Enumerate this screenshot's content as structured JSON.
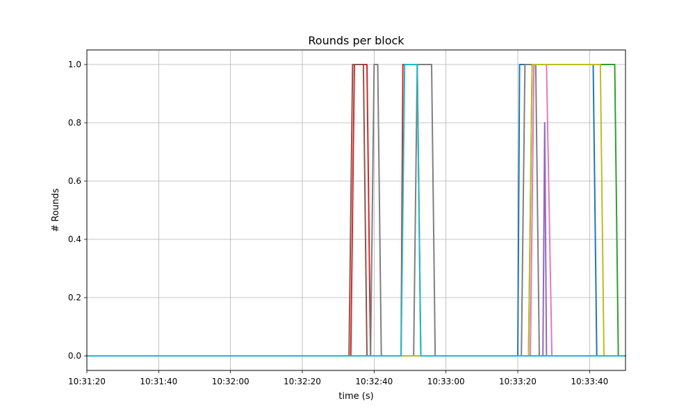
{
  "chart_data": {
    "type": "line",
    "title": "Rounds per block",
    "xlabel": "time (s)",
    "ylabel": "# Rounds",
    "xlim": [
      "10:31:20",
      "10:33:50"
    ],
    "ylim": [
      -0.05,
      1.05
    ],
    "x_ticks": [
      "10:31:20",
      "10:31:40",
      "10:32:00",
      "10:32:20",
      "10:32:40",
      "10:33:00",
      "10:33:20",
      "10:33:40"
    ],
    "y_ticks": [
      "0.0",
      "0.2",
      "0.4",
      "0.6",
      "0.8",
      "1.0"
    ],
    "grid": true,
    "legend": "none",
    "series": [
      {
        "color": "#1f77b4",
        "x": [
          "10:31:20",
          "10:33:20",
          "10:33:20.5",
          "10:33:22",
          "10:33:41",
          "10:33:42",
          "10:33:50"
        ],
        "y": [
          0,
          0,
          1,
          1,
          1,
          0,
          0
        ]
      },
      {
        "color": "#ff7f0e",
        "x": [
          "10:31:20",
          "10:32:48",
          "10:32:53",
          "10:33:50"
        ],
        "y": [
          0,
          0,
          0,
          0
        ]
      },
      {
        "color": "#2ca02c",
        "x": [
          "10:31:20",
          "10:33:23",
          "10:33:24",
          "10:33:47",
          "10:33:48",
          "10:33:50"
        ],
        "y": [
          0,
          0,
          1,
          1,
          0,
          0
        ]
      },
      {
        "color": "#d62728",
        "x": [
          "10:31:20",
          "10:32:33.5",
          "10:32:34.5",
          "10:32:38",
          "10:32:39",
          "10:32:47.5",
          "10:32:48",
          "10:32:50",
          "10:32:52",
          "10:32:53",
          "10:33:50"
        ],
        "y": [
          0,
          0,
          1,
          1,
          0,
          0,
          1,
          1,
          1,
          0,
          0
        ]
      },
      {
        "color": "#9467bd",
        "x": [
          "10:31:20",
          "10:33:27",
          "10:33:27.5",
          "10:33:28",
          "10:33:50"
        ],
        "y": [
          0,
          0,
          0.8,
          0,
          0
        ]
      },
      {
        "color": "#8c564b",
        "x": [
          "10:31:20",
          "10:32:33",
          "10:32:34",
          "10:32:37",
          "10:32:38",
          "10:33:50"
        ],
        "y": [
          0,
          0,
          1,
          1,
          0,
          0
        ]
      },
      {
        "color": "#e377c2",
        "x": [
          "10:31:20",
          "10:33:23.5",
          "10:33:24.5",
          "10:33:28",
          "10:33:29.5",
          "10:33:50"
        ],
        "y": [
          0,
          0,
          1,
          1,
          0,
          0
        ]
      },
      {
        "color": "#7f7f7f",
        "x": [
          "10:31:20",
          "10:32:39",
          "10:32:40",
          "10:32:41",
          "10:32:42",
          "10:32:51",
          "10:32:52",
          "10:32:56",
          "10:32:57",
          "10:33:21",
          "10:33:22",
          "10:33:25",
          "10:33:26",
          "10:33:50"
        ],
        "y": [
          0,
          0,
          1,
          1,
          0,
          0,
          1,
          1,
          0,
          0,
          1,
          1,
          0,
          0
        ]
      },
      {
        "color": "#bcbd22",
        "x": [
          "10:31:20",
          "10:33:23",
          "10:33:24",
          "10:33:43",
          "10:33:44",
          "10:33:50"
        ],
        "y": [
          0,
          0,
          1,
          1,
          0,
          0
        ]
      },
      {
        "color": "#17becf",
        "x": [
          "10:31:20",
          "10:32:47.5",
          "10:32:48.5",
          "10:32:52",
          "10:32:53",
          "10:33:50"
        ],
        "y": [
          0,
          0,
          1,
          1,
          0,
          0
        ]
      }
    ]
  }
}
